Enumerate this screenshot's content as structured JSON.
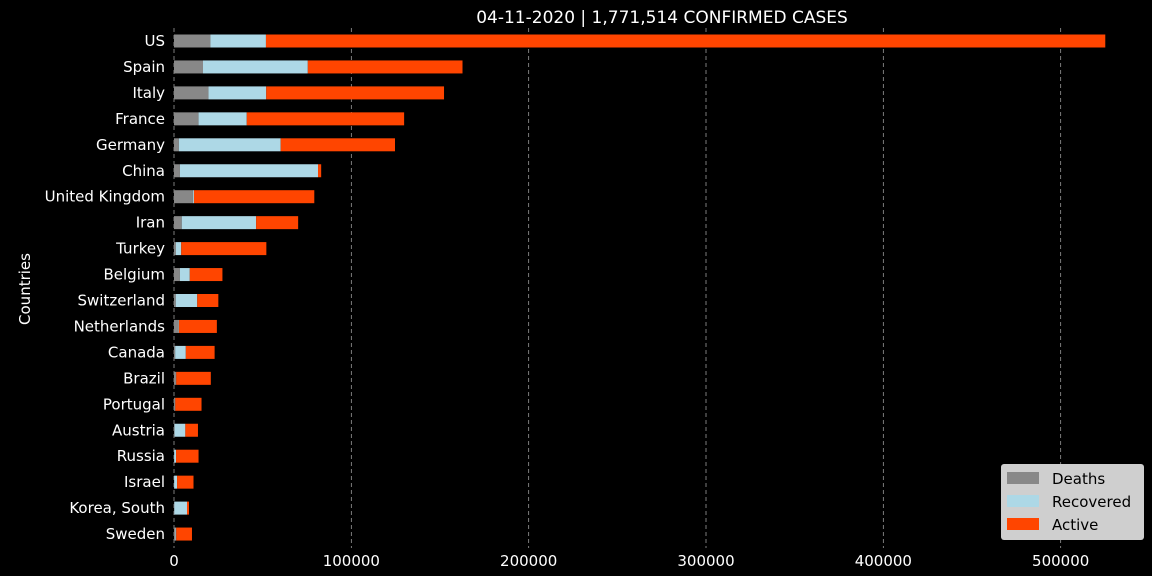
{
  "chart_data": {
    "type": "bar",
    "orientation": "horizontal",
    "stacked": true,
    "title": "04-11-2020 | 1,771,514 CONFIRMED CASES",
    "xlabel": "",
    "ylabel": "Countries",
    "xlim": [
      0,
      525000
    ],
    "xticks": [
      0,
      100000,
      200000,
      300000,
      400000,
      500000
    ],
    "grid": "vertical-dashed",
    "legend_position": "bottom-right",
    "categories": [
      "US",
      "Spain",
      "Italy",
      "France",
      "Germany",
      "China",
      "United Kingdom",
      "Iran",
      "Turkey",
      "Belgium",
      "Switzerland",
      "Netherlands",
      "Canada",
      "Brazil",
      "Portugal",
      "Austria",
      "Russia",
      "Israel",
      "Korea, South",
      "Sweden"
    ],
    "series": [
      {
        "name": "Deaths",
        "color": "#888888",
        "values": [
          20580,
          16353,
          19468,
          13851,
          2767,
          3339,
          10612,
          4357,
          1101,
          3346,
          1002,
          2511,
          653,
          1124,
          470,
          337,
          106,
          95,
          211,
          870
        ]
      },
      {
        "name": "Recovered",
        "color": "#add8e6",
        "values": [
          31270,
          59109,
          32534,
          27186,
          57400,
          77877,
          635,
          41947,
          2965,
          5568,
          12100,
          260,
          6014,
          127,
          233,
          6064,
          1045,
          1627,
          7117,
          381
        ]
      },
      {
        "name": "Active",
        "color": "#ff4500",
        "values": [
          473310,
          87231,
          100269,
          88733,
          64458,
          1780,
          67869,
          23703,
          48012,
          18396,
          11900,
          21400,
          16233,
          19515,
          14818,
          7111,
          12692,
          9278,
          1121,
          8883
        ]
      }
    ]
  }
}
